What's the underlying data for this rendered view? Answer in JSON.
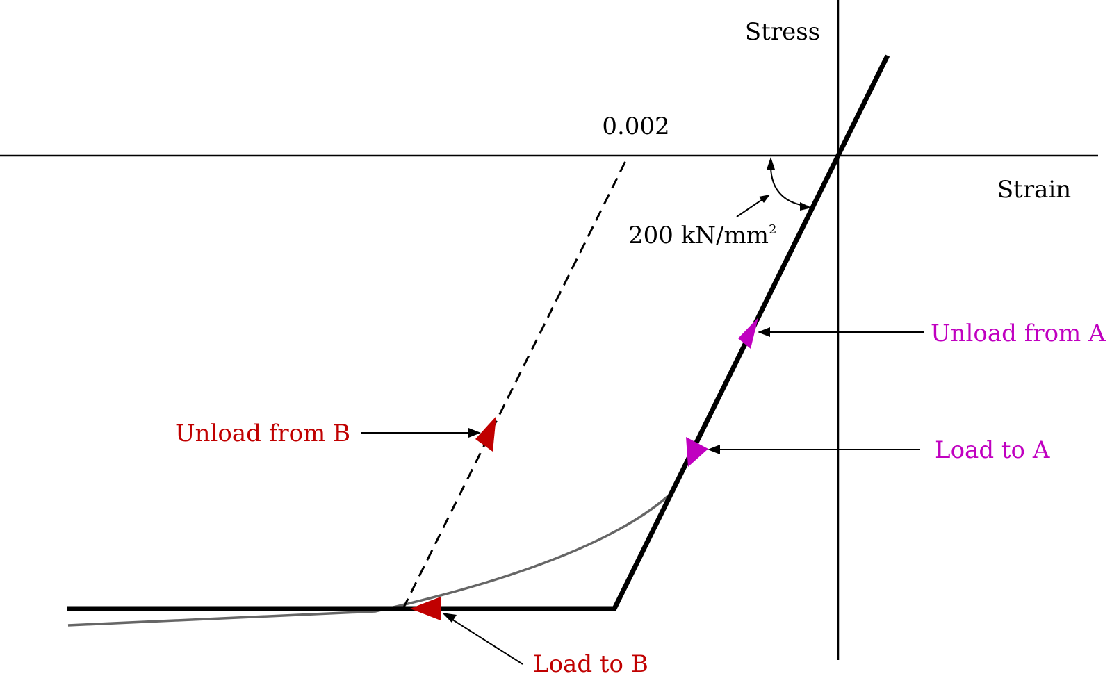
{
  "axes": {
    "y_label": "Stress",
    "x_label": "Strain"
  },
  "annotations": {
    "strain_value": "0.002",
    "modulus": {
      "value": "200 kN/mm",
      "superscript": "2"
    },
    "unload_from_a": "Unload from A",
    "load_to_a": "Load to A",
    "unload_from_b": "Unload from B",
    "load_to_b": "Load to B"
  },
  "colors": {
    "line": "#000000",
    "curve": "#666666",
    "magenta": "#c000c0",
    "red": "#c00000"
  }
}
